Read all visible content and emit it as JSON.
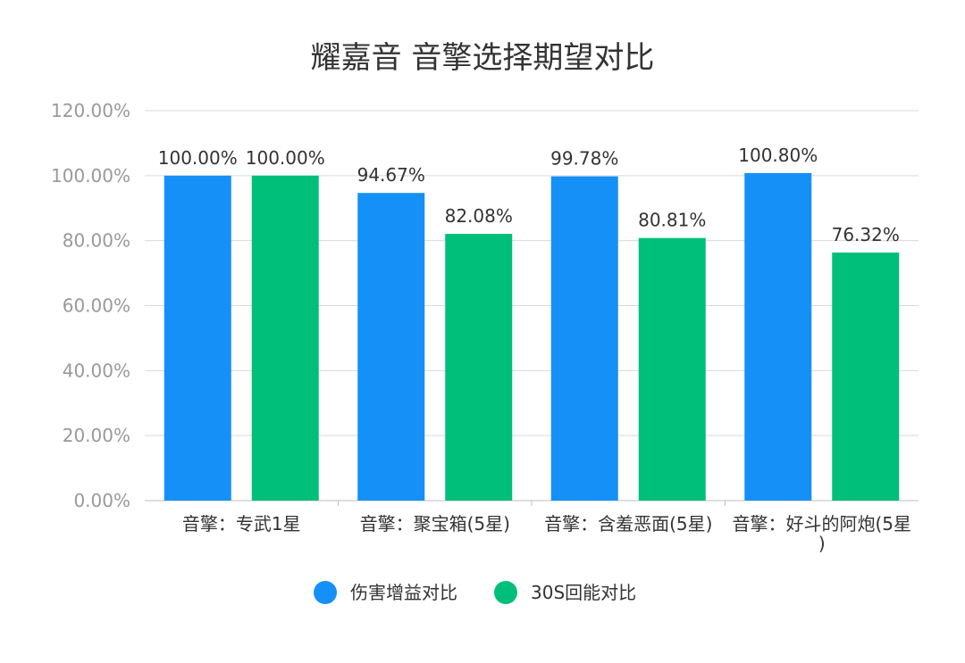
{
  "chart_data": {
    "type": "bar",
    "title": "耀嘉音 音擎选择期望对比",
    "categories": [
      [
        "音擎：专武1星"
      ],
      [
        "音擎：聚宝箱(5星)"
      ],
      [
        "音擎：含羞恶面(5星)"
      ],
      [
        "音擎：好斗的阿炮(5星",
        ")"
      ]
    ],
    "series": [
      {
        "name": "伤害增益对比",
        "color": "#1590f7",
        "values": [
          100.0,
          94.67,
          99.78,
          100.8
        ],
        "labels": [
          "100.00%",
          "94.67%",
          "99.78%",
          "100.80%"
        ]
      },
      {
        "name": "30S回能对比",
        "color": "#00bf7a",
        "values": [
          100.0,
          82.08,
          80.81,
          76.32
        ],
        "labels": [
          "100.00%",
          "82.08%",
          "80.81%",
          "76.32%"
        ]
      }
    ],
    "ylim": [
      0,
      120
    ],
    "yticks": [
      "0.00%",
      "20.00%",
      "40.00%",
      "60.00%",
      "80.00%",
      "100.00%",
      "120.00%"
    ],
    "grid": true,
    "legend": "bottom"
  }
}
